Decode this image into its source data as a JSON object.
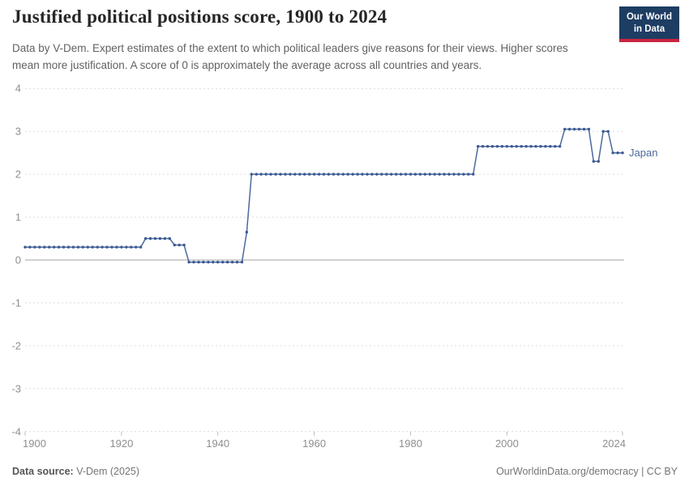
{
  "header": {
    "title": "Justified political positions score, 1900 to 2024",
    "subtitle": "Data by V-Dem. Expert estimates of the extent to which political leaders give reasons for their views. Higher scores mean more justification. A score of 0 is approximately the average across all countries and years."
  },
  "logo": {
    "line1": "Our World",
    "line2": "in Data",
    "bg_color": "#1d3d63",
    "bar_color": "#c9253f"
  },
  "chart_data": {
    "type": "line",
    "title": "Justified political positions score, 1900 to 2024",
    "xlabel": "",
    "ylabel": "",
    "xlim": [
      1900,
      2024
    ],
    "ylim": [
      -4,
      4
    ],
    "x_ticks": [
      1900,
      1920,
      1940,
      1960,
      1980,
      2000,
      2024
    ],
    "y_ticks": [
      4,
      3,
      2,
      1,
      0,
      -1,
      -2,
      -3,
      -4
    ],
    "grid": "horizontal dashed, solid line at 0",
    "legend_position": "label at end of line",
    "series": [
      {
        "name": "Japan",
        "color": "#4c6a9c",
        "marker_color": "#3b5a94",
        "segments": [
          {
            "start_year": 1900,
            "end_year": 1924,
            "value": 0.3
          },
          {
            "start_year": 1925,
            "end_year": 1930,
            "value": 0.5
          },
          {
            "start_year": 1931,
            "end_year": 1933,
            "value": 0.35
          },
          {
            "start_year": 1934,
            "end_year": 1945,
            "value": -0.05
          },
          {
            "start_year": 1946,
            "end_year": 1946,
            "value": 0.65
          },
          {
            "start_year": 1947,
            "end_year": 1993,
            "value": 2.0
          },
          {
            "start_year": 1994,
            "end_year": 2011,
            "value": 2.65
          },
          {
            "start_year": 2012,
            "end_year": 2017,
            "value": 3.05
          },
          {
            "start_year": 2018,
            "end_year": 2019,
            "value": 2.3
          },
          {
            "start_year": 2020,
            "end_year": 2021,
            "value": 3.0
          },
          {
            "start_year": 2022,
            "end_year": 2024,
            "value": 2.5
          }
        ]
      }
    ]
  },
  "footer": {
    "source_label": "Data source:",
    "source_value": "V-Dem (2025)",
    "link": "OurWorldinData.org/democracy",
    "license": " | CC BY"
  }
}
